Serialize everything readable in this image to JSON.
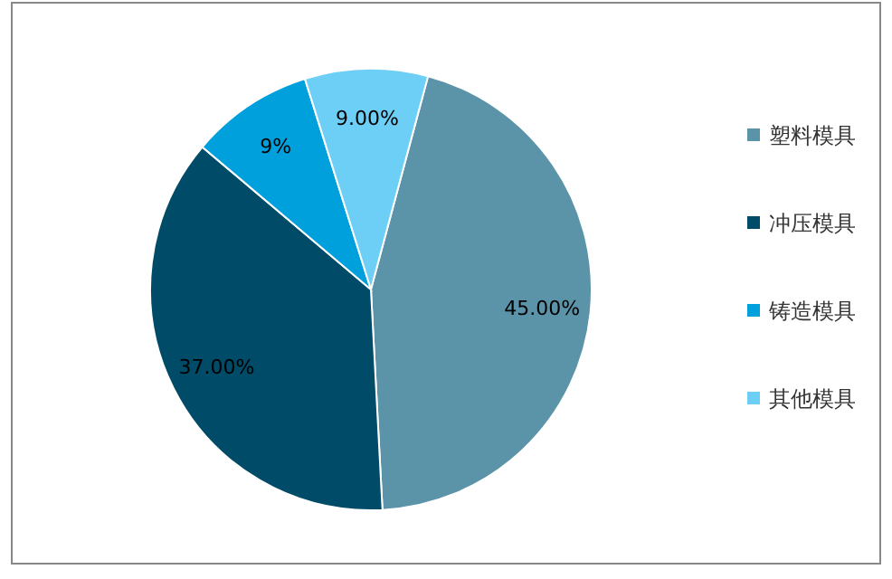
{
  "chart_data": {
    "type": "pie",
    "categories": [
      "塑料模具",
      "冲压模具",
      "铸造模具",
      "其他模具"
    ],
    "values": [
      45,
      37,
      9,
      9
    ],
    "colors": [
      "#5b93a8",
      "#004b68",
      "#00a0dc",
      "#6dcff6"
    ],
    "value_labels": [
      "45.00%",
      "37.00%",
      "9%",
      "9.00%"
    ],
    "legend": "right"
  }
}
